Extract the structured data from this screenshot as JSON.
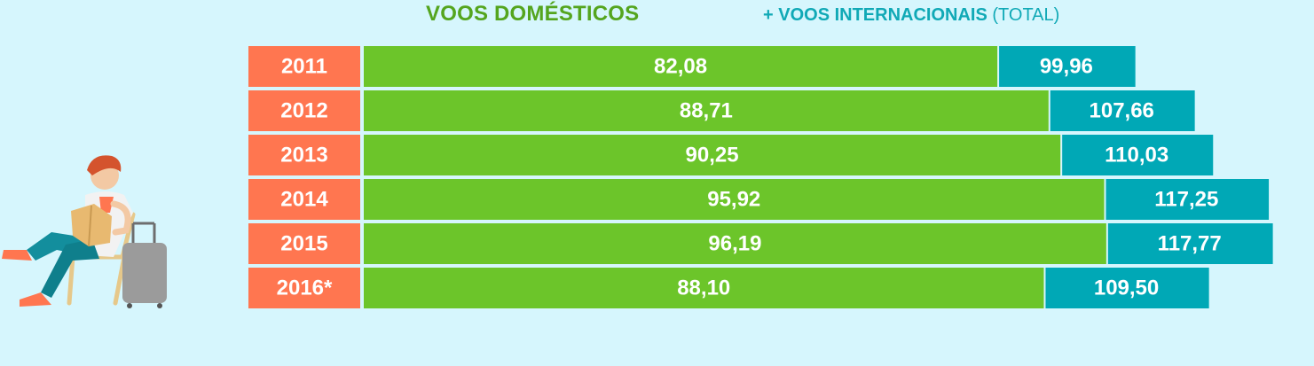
{
  "legend": {
    "domestic": "VOOS DOMÉSTICOS",
    "international_main": "+ VOOS INTERNACIONAIS",
    "international_suffix": " (TOTAL)"
  },
  "colors": {
    "background": "#d6f6fd",
    "year_cell": "#ff7650",
    "domestic": "#6cc52a",
    "total": "#00a8b6",
    "domestic_legend": "#54a51e",
    "total_legend": "#10a9b6"
  },
  "illustration": {
    "icon": "traveler-reading-with-suitcase-icon"
  },
  "chart_data": {
    "type": "bar",
    "orientation": "horizontal",
    "stacked": false,
    "categories": [
      "2011",
      "2012",
      "2013",
      "2014",
      "2015",
      "2016*"
    ],
    "series": [
      {
        "name": "VOOS DOMÉSTICOS",
        "values": [
          82.08,
          88.71,
          90.25,
          95.92,
          96.19,
          88.1
        ],
        "labels": [
          "82,08",
          "88,71",
          "90,25",
          "95,92",
          "96,19",
          "88,10"
        ]
      },
      {
        "name": "+ VOOS INTERNACIONAIS (TOTAL)",
        "values": [
          99.96,
          107.66,
          110.03,
          117.25,
          117.77,
          109.5
        ],
        "labels": [
          "99,96",
          "107,66",
          "110,03",
          "117,25",
          "117,77",
          "109,50"
        ]
      }
    ],
    "title": "",
    "xlabel": "",
    "ylabel": "",
    "legend_position": "top",
    "grid": false
  }
}
